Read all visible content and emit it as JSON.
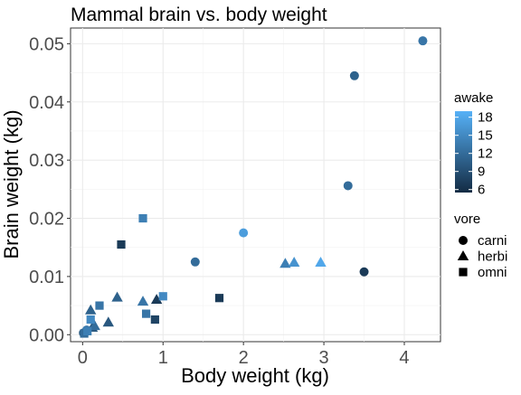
{
  "chart_data": {
    "type": "scatter",
    "title": "Mammal brain vs. body weight",
    "xlabel": "Body weight (kg)",
    "ylabel": "Brain weight (kg)",
    "xlim": [
      -0.15,
      4.45
    ],
    "ylim": [
      -0.0012,
      0.0527
    ],
    "x_ticks": [
      0,
      1,
      2,
      3,
      4
    ],
    "x_tick_labels": [
      "0",
      "1",
      "2",
      "3",
      "4"
    ],
    "y_ticks": [
      0,
      0.01,
      0.02,
      0.03,
      0.04,
      0.05
    ],
    "y_tick_labels": [
      "0.00",
      "0.01",
      "0.02",
      "0.03",
      "0.04",
      "0.05"
    ],
    "grid": true,
    "legend_position": "right",
    "color_legend": {
      "title": "awake",
      "min": 5.5,
      "max": 19,
      "low_color": "#132B43",
      "high_color": "#56B1F7",
      "breaks": [
        6,
        9,
        12,
        15,
        18
      ],
      "break_labels": [
        "6",
        "9",
        "12",
        "15",
        "18"
      ]
    },
    "shape_legend": {
      "title": "vore",
      "entries": [
        {
          "label": "carni",
          "shape": "circle"
        },
        {
          "label": "herbi",
          "shape": "triangle"
        },
        {
          "label": "omni",
          "shape": "square"
        }
      ]
    },
    "points": [
      {
        "x": 0.01,
        "y": 0.0003,
        "vore": "carni",
        "awake": 10
      },
      {
        "x": 0.05,
        "y": 0.0008,
        "vore": "carni",
        "awake": 13
      },
      {
        "x": 1.4,
        "y": 0.0125,
        "vore": "carni",
        "awake": 12
      },
      {
        "x": 2.0,
        "y": 0.0175,
        "vore": "carni",
        "awake": 17
      },
      {
        "x": 3.3,
        "y": 0.0256,
        "vore": "carni",
        "awake": 12
      },
      {
        "x": 3.38,
        "y": 0.0445,
        "vore": "carni",
        "awake": 11
      },
      {
        "x": 3.5,
        "y": 0.0108,
        "vore": "carni",
        "awake": 7
      },
      {
        "x": 4.23,
        "y": 0.0505,
        "vore": "carni",
        "awake": 13
      },
      {
        "x": 0.1,
        "y": 0.0042,
        "vore": "herbi",
        "awake": 11
      },
      {
        "x": 0.12,
        "y": 0.0012,
        "vore": "herbi",
        "awake": 10
      },
      {
        "x": 0.15,
        "y": 0.0015,
        "vore": "herbi",
        "awake": 12
      },
      {
        "x": 0.32,
        "y": 0.0021,
        "vore": "herbi",
        "awake": 10
      },
      {
        "x": 0.43,
        "y": 0.0064,
        "vore": "herbi",
        "awake": 11
      },
      {
        "x": 0.75,
        "y": 0.0057,
        "vore": "herbi",
        "awake": 13
      },
      {
        "x": 0.92,
        "y": 0.006,
        "vore": "herbi",
        "awake": 7
      },
      {
        "x": 2.52,
        "y": 0.0122,
        "vore": "herbi",
        "awake": 14
      },
      {
        "x": 2.63,
        "y": 0.0124,
        "vore": "herbi",
        "awake": 16
      },
      {
        "x": 2.96,
        "y": 0.0124,
        "vore": "herbi",
        "awake": 18
      },
      {
        "x": 0.02,
        "y": 0.0002,
        "vore": "omni",
        "awake": 12
      },
      {
        "x": 0.06,
        "y": 0.0006,
        "vore": "omni",
        "awake": 14
      },
      {
        "x": 0.1,
        "y": 0.0026,
        "vore": "omni",
        "awake": 15
      },
      {
        "x": 0.21,
        "y": 0.005,
        "vore": "omni",
        "awake": 13
      },
      {
        "x": 0.48,
        "y": 0.0155,
        "vore": "omni",
        "awake": 7
      },
      {
        "x": 0.75,
        "y": 0.02,
        "vore": "omni",
        "awake": 14
      },
      {
        "x": 0.79,
        "y": 0.0036,
        "vore": "omni",
        "awake": 13
      },
      {
        "x": 0.9,
        "y": 0.0026,
        "vore": "omni",
        "awake": 8
      },
      {
        "x": 1.0,
        "y": 0.0066,
        "vore": "omni",
        "awake": 15
      },
      {
        "x": 1.7,
        "y": 0.0063,
        "vore": "omni",
        "awake": 7
      }
    ]
  }
}
